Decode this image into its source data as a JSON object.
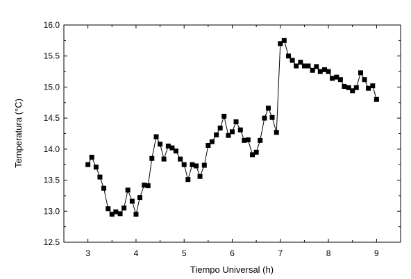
{
  "chart_data": {
    "type": "line",
    "title": "",
    "xlabel": "Tiempo Universal (h)",
    "ylabel": "Temperatura (°C)",
    "xlim": [
      2.5,
      9.5
    ],
    "ylim": [
      12.5,
      16.0
    ],
    "xticks": [
      "3",
      "4",
      "5",
      "6",
      "7",
      "8",
      "9"
    ],
    "yticks": [
      "12.5",
      "13.0",
      "13.5",
      "14.0",
      "14.5",
      "15.0",
      "15.5",
      "16.0"
    ],
    "grid": false,
    "marker": "square",
    "line_color": "#000000",
    "marker_color": "#000000",
    "series": [
      {
        "x": [
          3.0,
          3.08,
          3.17,
          3.25,
          3.33,
          3.42,
          3.5,
          3.58,
          3.67,
          3.75,
          3.83,
          3.92,
          4.0,
          4.08,
          4.17,
          4.25,
          4.33,
          4.42,
          4.5,
          4.58,
          4.67,
          4.75,
          4.83,
          4.92,
          5.0,
          5.08,
          5.17,
          5.25,
          5.33,
          5.42,
          5.5,
          5.58,
          5.67,
          5.75,
          5.83,
          5.92,
          6.0,
          6.08,
          6.17,
          6.25,
          6.33,
          6.42,
          6.5,
          6.58,
          6.67,
          6.75,
          6.83,
          6.92,
          7.0,
          7.08,
          7.17,
          7.25,
          7.33,
          7.42,
          7.5,
          7.58,
          7.67,
          7.75,
          7.83,
          7.92,
          8.0,
          8.08,
          8.17,
          8.25,
          8.33,
          8.42,
          8.5,
          8.58,
          8.67,
          8.75,
          8.83,
          8.92,
          9.0
        ],
        "y": [
          13.75,
          13.87,
          13.71,
          13.55,
          13.37,
          13.04,
          12.95,
          12.99,
          12.96,
          13.05,
          13.34,
          13.16,
          12.95,
          13.22,
          13.42,
          13.41,
          13.85,
          14.2,
          14.08,
          13.84,
          14.05,
          14.02,
          13.97,
          13.84,
          13.75,
          13.51,
          13.75,
          13.73,
          13.56,
          13.74,
          14.06,
          14.12,
          14.23,
          14.34,
          14.53,
          14.22,
          14.28,
          14.44,
          14.31,
          14.14,
          14.15,
          13.91,
          13.95,
          14.14,
          14.5,
          14.66,
          14.51,
          14.27,
          15.7,
          15.75,
          15.5,
          15.43,
          15.34,
          15.4,
          15.34,
          15.34,
          15.27,
          15.33,
          15.25,
          15.28,
          15.25,
          15.14,
          15.16,
          15.12,
          15.01,
          14.99,
          14.94,
          14.99,
          15.23,
          15.12,
          14.98,
          15.02,
          14.8
        ]
      }
    ]
  }
}
